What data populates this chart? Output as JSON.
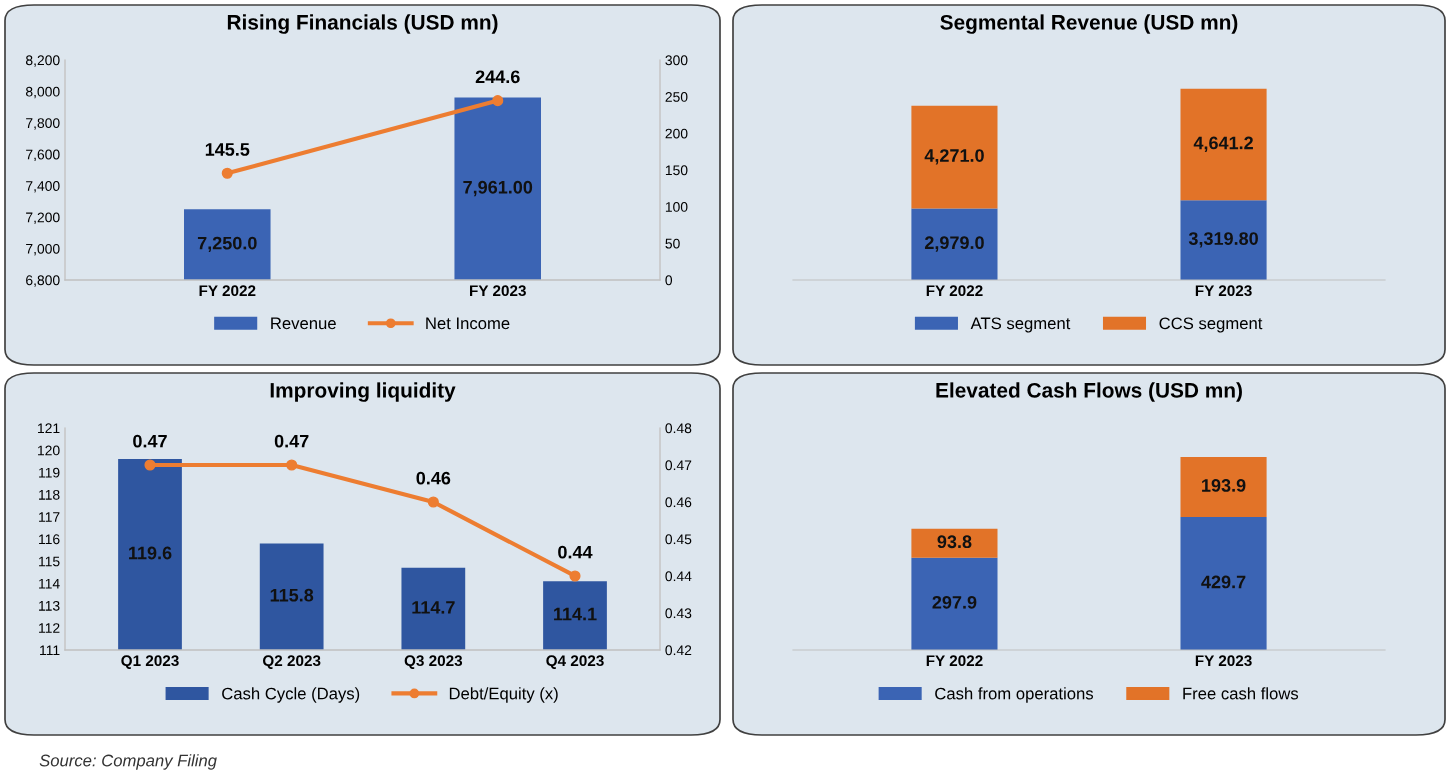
{
  "chart_data": [
    {
      "type": "bar",
      "title": "Rising Financials (USD mn)",
      "categories": [
        "FY 2022",
        "FY 2023"
      ],
      "ylim": [
        6800,
        8200
      ],
      "yticks": [
        {
          "value": 6800,
          "label": "6,800"
        },
        {
          "value": 7000,
          "label": "7,000"
        },
        {
          "value": 7200,
          "label": "7,200"
        },
        {
          "value": 7400,
          "label": "7,400"
        },
        {
          "value": 7600,
          "label": "7,600"
        },
        {
          "value": 7800,
          "label": "7,800"
        },
        {
          "value": 8000,
          "label": "8,000"
        },
        {
          "value": 8200,
          "label": "8,200"
        }
      ],
      "y2lim": [
        0,
        300
      ],
      "y2ticks": [
        0,
        50,
        100,
        150,
        200,
        250,
        300
      ],
      "legend": "bottom",
      "marker": "circle",
      "series": [
        {
          "name": "Revenue",
          "type": "bar",
          "color": "#3b64b4",
          "values": [
            7250.0,
            7961.0
          ],
          "value_labels": [
            "7,250.0",
            "7,961.00"
          ]
        },
        {
          "name": "Net Income",
          "type": "line",
          "axis": "y2",
          "color": "#ed7d31",
          "values": [
            145.5,
            244.6
          ],
          "value_labels": [
            "145.5",
            "244.6"
          ]
        }
      ]
    },
    {
      "type": "bar",
      "title": "Segmental Revenue (USD mn)",
      "categories": [
        "FY 2022",
        "FY 2023"
      ],
      "stacked": true,
      "tick_labels": "x",
      "legend": "bottom",
      "series": [
        {
          "name": "ATS segment",
          "color": "#3b64b4",
          "values": [
            2979.0,
            3319.8
          ],
          "value_labels": [
            "2,979.0",
            "3,319.80"
          ]
        },
        {
          "name": "CCS segment",
          "color": "#e27328",
          "values": [
            4271.0,
            4641.2
          ],
          "value_labels": [
            "4,271.0",
            "4,641.2"
          ]
        }
      ]
    },
    {
      "type": "bar",
      "title": "Improving liquidity",
      "categories": [
        "Q1 2023",
        "Q2 2023",
        "Q3 2023",
        "Q4 2023"
      ],
      "ylim": [
        111,
        121
      ],
      "yticks": [
        111,
        112,
        113,
        114,
        115,
        116,
        117,
        118,
        119,
        120,
        121
      ],
      "y2lim": [
        0.42,
        0.48
      ],
      "y2ticks": [
        0.42,
        0.43,
        0.44,
        0.45,
        0.46,
        0.47,
        0.48
      ],
      "legend": "bottom",
      "marker": "circle",
      "series": [
        {
          "name": "Cash Cycle (Days)",
          "type": "bar",
          "color": "#2f56a0",
          "values": [
            119.6,
            115.8,
            114.7,
            114.1
          ],
          "value_labels": [
            "119.6",
            "115.8",
            "114.7",
            "114.1"
          ]
        },
        {
          "name": "Debt/Equity (x)",
          "type": "line",
          "axis": "y2",
          "color": "#ed7d31",
          "values": [
            0.47,
            0.47,
            0.46,
            0.44
          ],
          "value_labels": [
            "0.47",
            "0.47",
            "0.46",
            "0.44"
          ]
        }
      ]
    },
    {
      "type": "bar",
      "title": "Elevated Cash Flows (USD mn)",
      "categories": [
        "FY 2022",
        "FY 2023"
      ],
      "stacked": true,
      "tick_labels": "x",
      "legend": "bottom",
      "series": [
        {
          "name": "Cash from operations",
          "color": "#3b64b4",
          "values": [
            297.9,
            429.7
          ],
          "value_labels": [
            "297.9",
            "429.7"
          ]
        },
        {
          "name": "Free cash flows",
          "color": "#e27328",
          "values": [
            93.8,
            193.9
          ],
          "value_labels": [
            "93.8",
            "193.9"
          ]
        }
      ],
      "annotations": [
        "Source: Company Filing"
      ]
    }
  ]
}
